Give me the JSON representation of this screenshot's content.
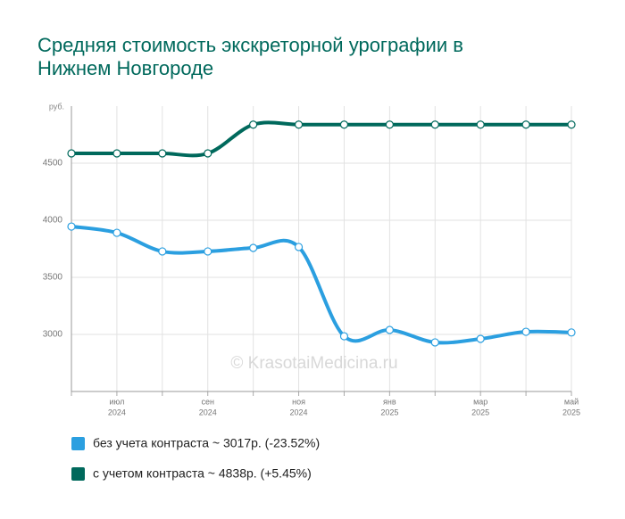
{
  "chart_data": {
    "type": "line",
    "title": "Средняя стоимость экскреторной урографии в",
    "title_line2": "Нижнем Новгороде",
    "y_unit": "руб.",
    "watermark": "© KrasotaiMedicina.ru",
    "categories": [
      null,
      "июл",
      null,
      "сен",
      null,
      "ноя",
      null,
      "янв",
      null,
      "мар",
      null,
      "май"
    ],
    "category_years": [
      null,
      "2024",
      null,
      "2024",
      null,
      "2024",
      null,
      "2025",
      null,
      "2025",
      null,
      "2025"
    ],
    "series": [
      {
        "name": "без учета контраста ~ 3017р. (-23.52%)",
        "color": "#2b9fe0",
        "values": [
          3945,
          3890,
          3727,
          3727,
          3758,
          3766,
          2984,
          3039,
          2930,
          2961,
          3023,
          3017
        ]
      },
      {
        "name": "с учетом контраста ~ 4838р. (+5.45%)",
        "color": "#00695c",
        "values": [
          4586,
          4586,
          4586,
          4586,
          4838,
          4838,
          4838,
          4838,
          4838,
          4838,
          4838,
          4838
        ]
      }
    ],
    "ylim": [
      2500,
      5000
    ],
    "yticks": [
      3000,
      3500,
      4000,
      4500
    ],
    "grid": true
  }
}
